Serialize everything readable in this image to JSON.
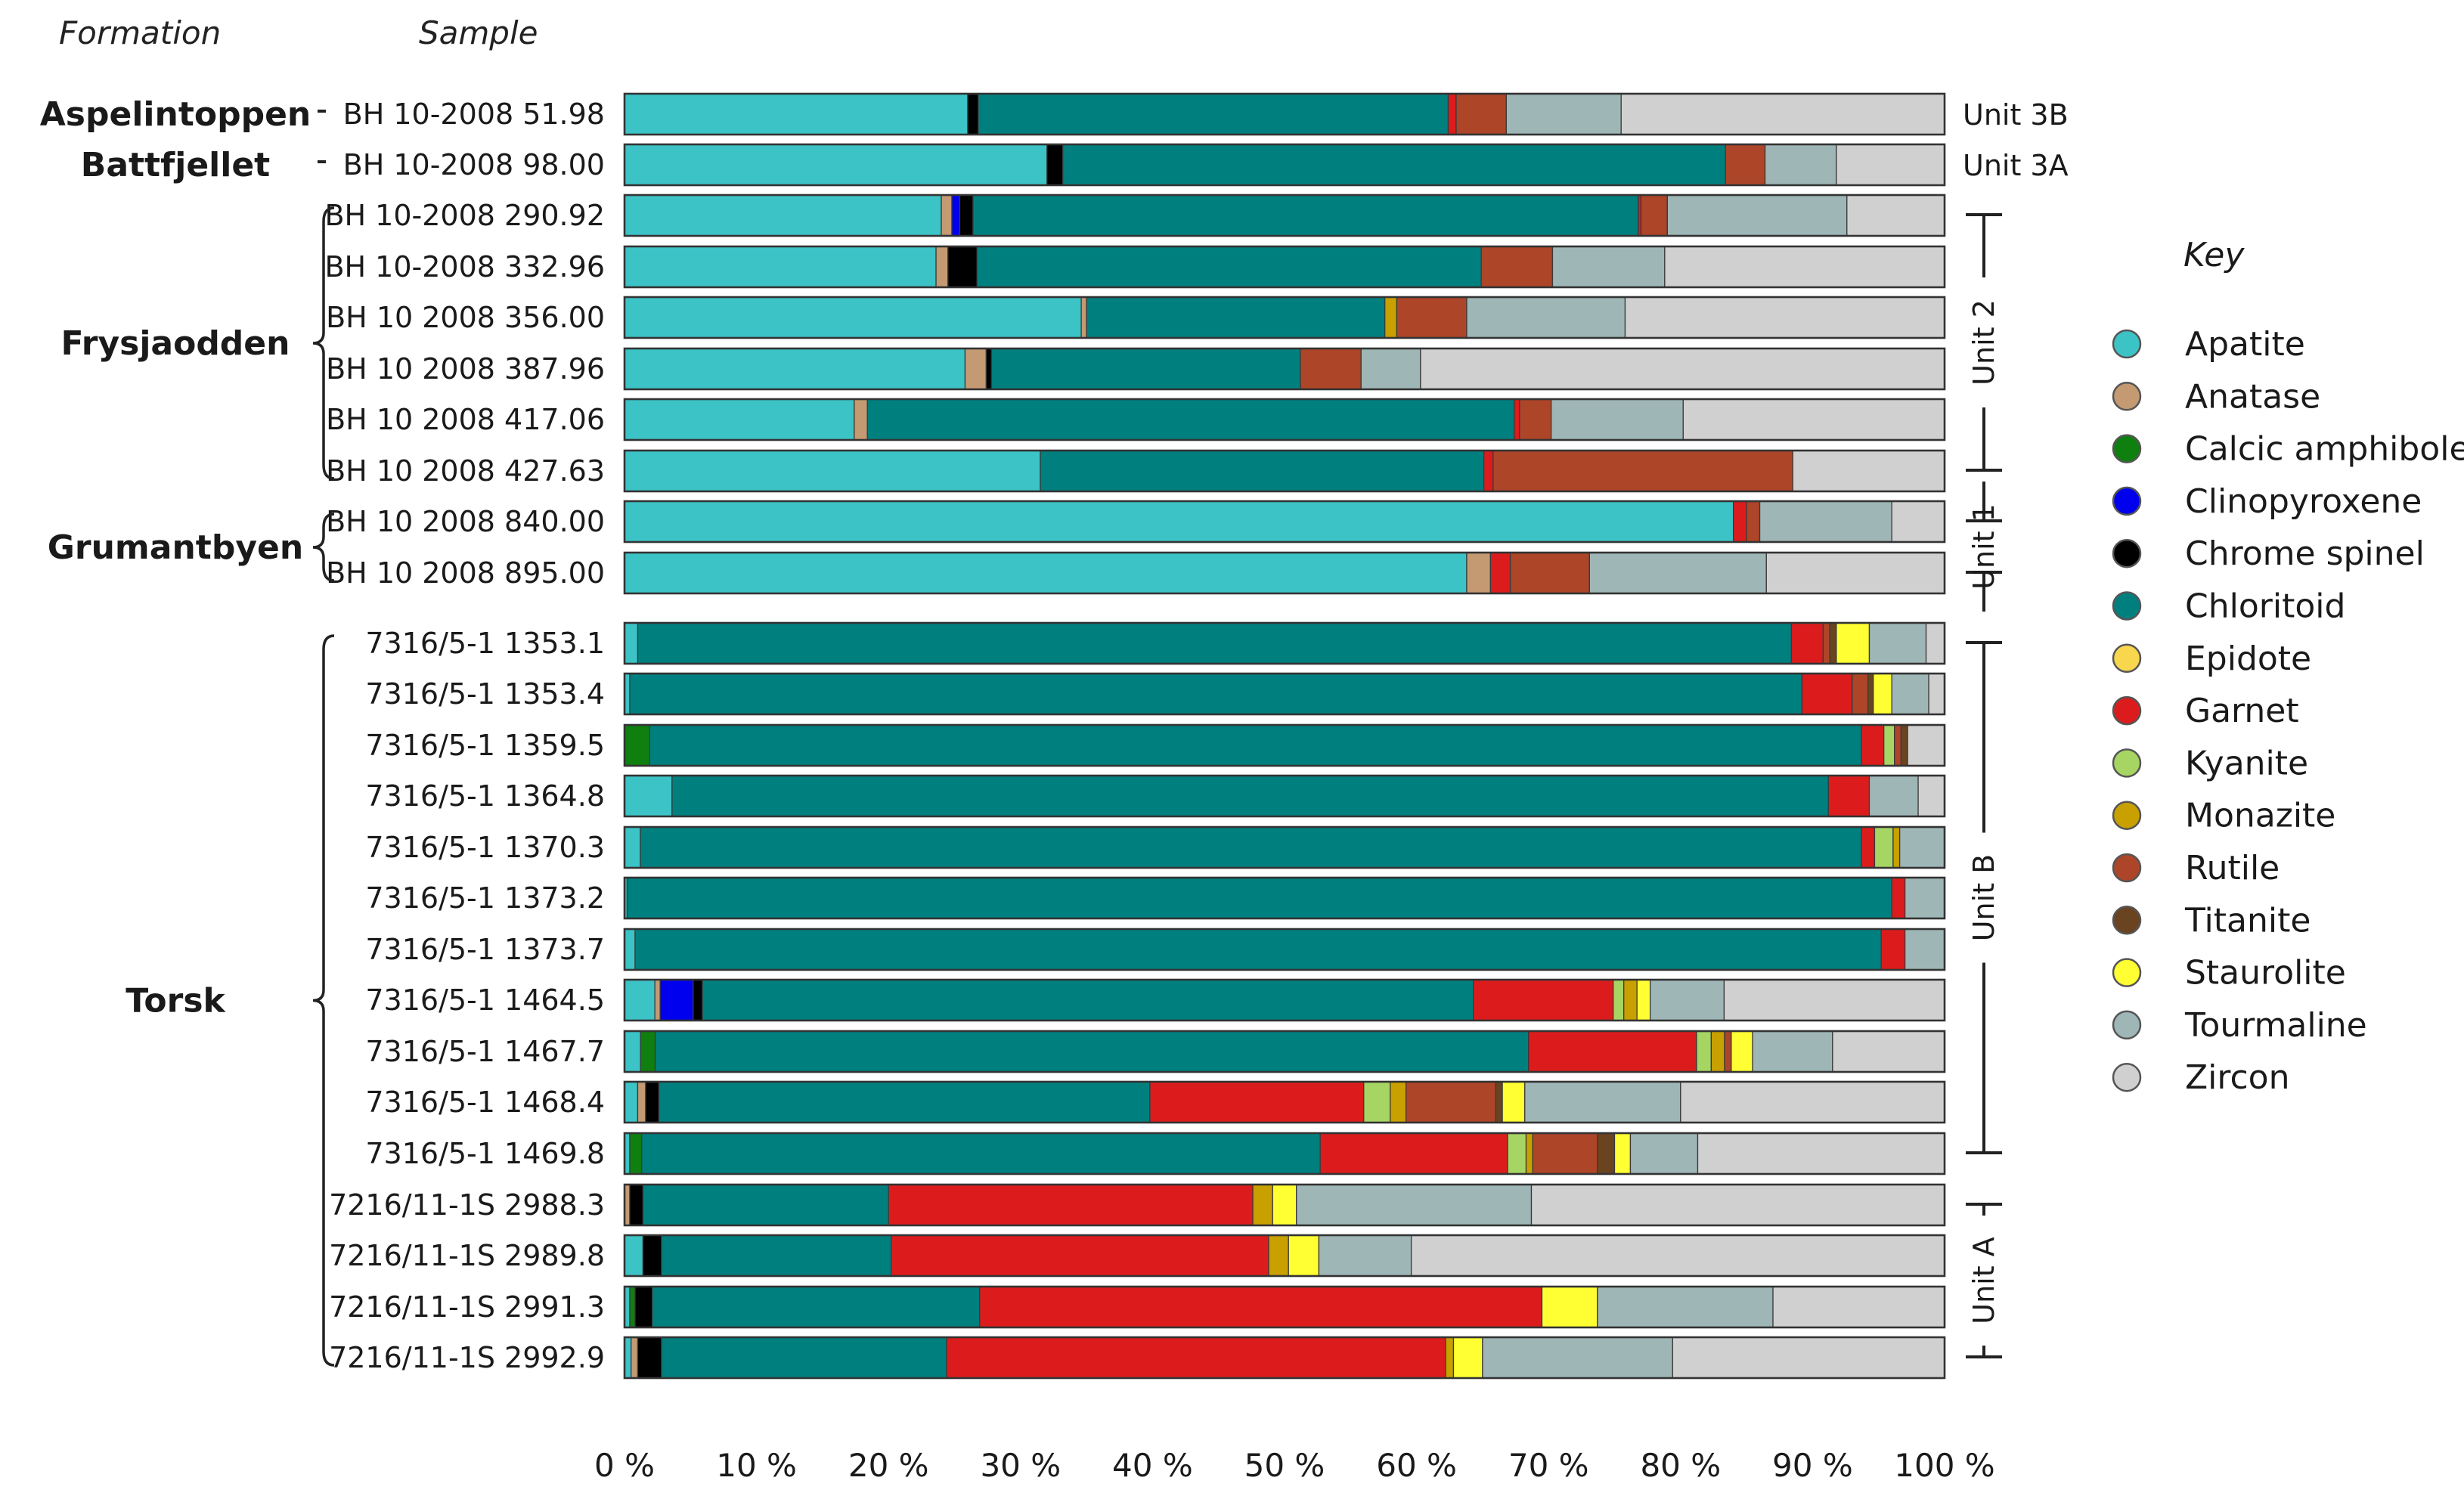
{
  "headers": {
    "formation": "Formation",
    "sample": "Sample"
  },
  "key_title": "Key",
  "chart_data": {
    "type": "bar",
    "orientation": "horizontal",
    "stacked": true,
    "xlim": [
      0,
      100
    ],
    "xticks": [
      "0 %",
      "10 %",
      "20 %",
      "30 %",
      "40 %",
      "50 %",
      "60 %",
      "70 %",
      "80 %",
      "90 %",
      "100 %"
    ],
    "legend_position": "right",
    "minerals": [
      {
        "name": "Apatite",
        "color": "#3cc3c6"
      },
      {
        "name": "Anatase",
        "color": "#c49a72"
      },
      {
        "name": "Calcic amphibole",
        "color": "#0f7f0f"
      },
      {
        "name": "Clinopyroxene",
        "color": "#0000ee"
      },
      {
        "name": "Chrome spinel",
        "color": "#000000"
      },
      {
        "name": "Chloritoid",
        "color": "#007f7f"
      },
      {
        "name": "Epidote",
        "color": "#f8d64e"
      },
      {
        "name": "Garnet",
        "color": "#dc1c1c"
      },
      {
        "name": "Kyanite",
        "color": "#a7d564"
      },
      {
        "name": "Monazite",
        "color": "#c8a000"
      },
      {
        "name": "Rutile",
        "color": "#ad4528"
      },
      {
        "name": "Titanite",
        "color": "#6a4320"
      },
      {
        "name": "Staurolite",
        "color": "#ffff33"
      },
      {
        "name": "Tourmaline",
        "color": "#9fb6b6"
      },
      {
        "name": "Zircon",
        "color": "#d0d0d0"
      }
    ],
    "formations": [
      {
        "name": "Aspelintoppen",
        "rows": [
          0,
          0
        ]
      },
      {
        "name": "Battfjellet",
        "rows": [
          1,
          1
        ]
      },
      {
        "name": "Frysjaodden",
        "rows": [
          2,
          7
        ]
      },
      {
        "name": "Grumantbyen",
        "rows": [
          8,
          9
        ]
      },
      {
        "name": "Torsk",
        "rows": [
          10,
          24
        ]
      }
    ],
    "units": [
      {
        "name": "Unit 3B",
        "rows": [
          0,
          0
        ],
        "style": "label"
      },
      {
        "name": "Unit 3A",
        "rows": [
          1,
          1
        ],
        "style": "label"
      },
      {
        "name": "Unit 2",
        "rows": [
          2,
          7
        ],
        "style": "bracket"
      },
      {
        "name": "Unit 1",
        "rows": [
          8,
          9
        ],
        "style": "bracket"
      },
      {
        "name": "Unit B",
        "rows": [
          10,
          20
        ],
        "style": "bracket"
      },
      {
        "name": "Unit A",
        "rows": [
          21,
          24
        ],
        "style": "bracket"
      }
    ],
    "samples": [
      {
        "label": "BH 10-2008 51.98",
        "values": [
          26,
          0,
          0,
          0,
          0.8,
          35.6,
          0,
          0.6,
          0,
          0,
          3.8,
          0,
          0,
          8.7,
          24.5
        ]
      },
      {
        "label": "BH 10-2008 98.00",
        "values": [
          32,
          0,
          0,
          0,
          1.2,
          50.2,
          0,
          0,
          0,
          0,
          3,
          0,
          0,
          5.4,
          8.2
        ]
      },
      {
        "name_note": "",
        "label": "BH 10-2008 290.92",
        "values": [
          24,
          0.8,
          0,
          0.6,
          1,
          50.4,
          0,
          0.2,
          0,
          0,
          2,
          0,
          0,
          13.6,
          7.4
        ]
      },
      {
        "label": "BH 10-2008 332.96",
        "values": [
          23.6,
          0.9,
          0,
          0,
          2.2,
          38.2,
          0,
          0,
          0,
          0,
          5.4,
          0,
          0,
          8.5,
          21.2
        ]
      },
      {
        "label": "BH 10 2008 356.00",
        "values": [
          34.6,
          0.4,
          0,
          0,
          0,
          22.6,
          0,
          0,
          0,
          0.9,
          5.3,
          0,
          0,
          12,
          24.2
        ]
      },
      {
        "label": "BH 10 2008 387.96",
        "values": [
          25.8,
          1.6,
          0,
          0,
          0.4,
          23.4,
          0,
          0,
          0,
          0,
          4.6,
          0,
          0,
          4.5,
          39.7
        ]
      },
      {
        "label": "BH 10 2008 417.06",
        "values": [
          17.4,
          1,
          0,
          0,
          0,
          49,
          0,
          0.4,
          0,
          0,
          2.4,
          0,
          0,
          10,
          19.8
        ]
      },
      {
        "label": "BH 10 2008 427.63",
        "values": [
          31.5,
          0,
          0,
          0,
          0,
          33.6,
          0,
          0.7,
          0,
          0,
          22.7,
          0,
          0,
          0,
          11.5
        ]
      },
      {
        "label": "BH 10 2008 840.00",
        "values": [
          84,
          0,
          0,
          0,
          0,
          0,
          0,
          1,
          0,
          0,
          1,
          0,
          0,
          10,
          4
        ]
      },
      {
        "label": "BH 10 2008 895.00",
        "values": [
          63.8,
          1.8,
          0,
          0,
          0,
          0,
          0,
          1.5,
          0,
          0,
          6,
          0,
          0,
          13.4,
          13.5
        ]
      },
      {
        "label": "7316/5-1 1353.1",
        "values": [
          1,
          0,
          0,
          0,
          0,
          87.4,
          0,
          2.4,
          0,
          0,
          0.5,
          0.5,
          2.5,
          4.3,
          1.4
        ]
      },
      {
        "label": "7316/5-1 1353.4",
        "values": [
          0.4,
          0,
          0,
          0,
          0,
          88.8,
          0,
          3.8,
          0,
          0,
          1.2,
          0.4,
          1.4,
          2.8,
          1.2
        ]
      },
      {
        "label": "7316/5-1 1359.5",
        "values": [
          0,
          0,
          1.9,
          0,
          0,
          91.8,
          0,
          1.7,
          0.8,
          0,
          0.5,
          0.5,
          0,
          0,
          2.8
        ]
      },
      {
        "label": "7316/5-1 1364.8",
        "values": [
          3.6,
          0,
          0,
          0,
          0,
          87.6,
          0,
          3.1,
          0,
          0,
          0,
          0,
          0,
          3.7,
          2
        ]
      },
      {
        "label": "7316/5-1 1370.3",
        "values": [
          1.2,
          0,
          0,
          0,
          0,
          92.5,
          0,
          1,
          1.4,
          0.5,
          0,
          0,
          0,
          3.4,
          0
        ]
      },
      {
        "label": "7316/5-1 1373.2",
        "values": [
          0.2,
          0,
          0,
          0,
          0,
          95.8,
          0,
          1,
          0,
          0,
          0,
          0,
          0,
          3,
          0
        ]
      },
      {
        "label": "7316/5-1 1373.7",
        "values": [
          0.8,
          0,
          0,
          0,
          0,
          94.4,
          0,
          1.8,
          0,
          0,
          0,
          0,
          0,
          3,
          0
        ]
      },
      {
        "label": "7316/5-1 1464.5",
        "values": [
          2.3,
          0.4,
          0,
          2.5,
          0.7,
          58.4,
          0,
          10.6,
          0.8,
          1,
          0,
          0,
          1,
          5.6,
          16.7
        ]
      },
      {
        "label": "7316/5-1 1467.7",
        "values": [
          1.2,
          0,
          1.1,
          0,
          0,
          65.5,
          0,
          12.6,
          1.1,
          1,
          0.5,
          0,
          1.6,
          6,
          8.4
        ]
      },
      {
        "label": "7316/5-1 1468.4",
        "values": [
          1,
          0.6,
          0,
          0,
          1,
          37.2,
          0,
          16.2,
          2,
          1.2,
          6.8,
          0.5,
          1.7,
          11.8,
          20
        ]
      },
      {
        "label": "7316/5-1 1469.8",
        "values": [
          0.4,
          0,
          0.9,
          0,
          0,
          51.4,
          0,
          14.2,
          1.4,
          0.5,
          4.9,
          1.3,
          1.2,
          5.1,
          18.7
        ]
      },
      {
        "label": "7216/11-1S 2988.3",
        "values": [
          0,
          0.4,
          0,
          0,
          1,
          18.6,
          0,
          27.6,
          0,
          1.5,
          0,
          0,
          1.8,
          17.8,
          31.3
        ]
      },
      {
        "label": "7216/11-1S 2989.8",
        "values": [
          1.4,
          0,
          0,
          0,
          1.4,
          17.4,
          0,
          28.6,
          0,
          1.5,
          0,
          0,
          2.3,
          7,
          40.4
        ]
      },
      {
        "label": "7216/11-1S 2991.3",
        "values": [
          0.4,
          0,
          0.4,
          0,
          1.3,
          24.8,
          0,
          42.6,
          0,
          0,
          0,
          0,
          4.2,
          13.3,
          13
        ]
      },
      {
        "label": "7216/11-1S 2992.9",
        "values": [
          0.5,
          0.5,
          0,
          0,
          1.8,
          21.6,
          0,
          37.8,
          0,
          0.6,
          0,
          0,
          2.2,
          14.4,
          20.6
        ]
      }
    ]
  }
}
